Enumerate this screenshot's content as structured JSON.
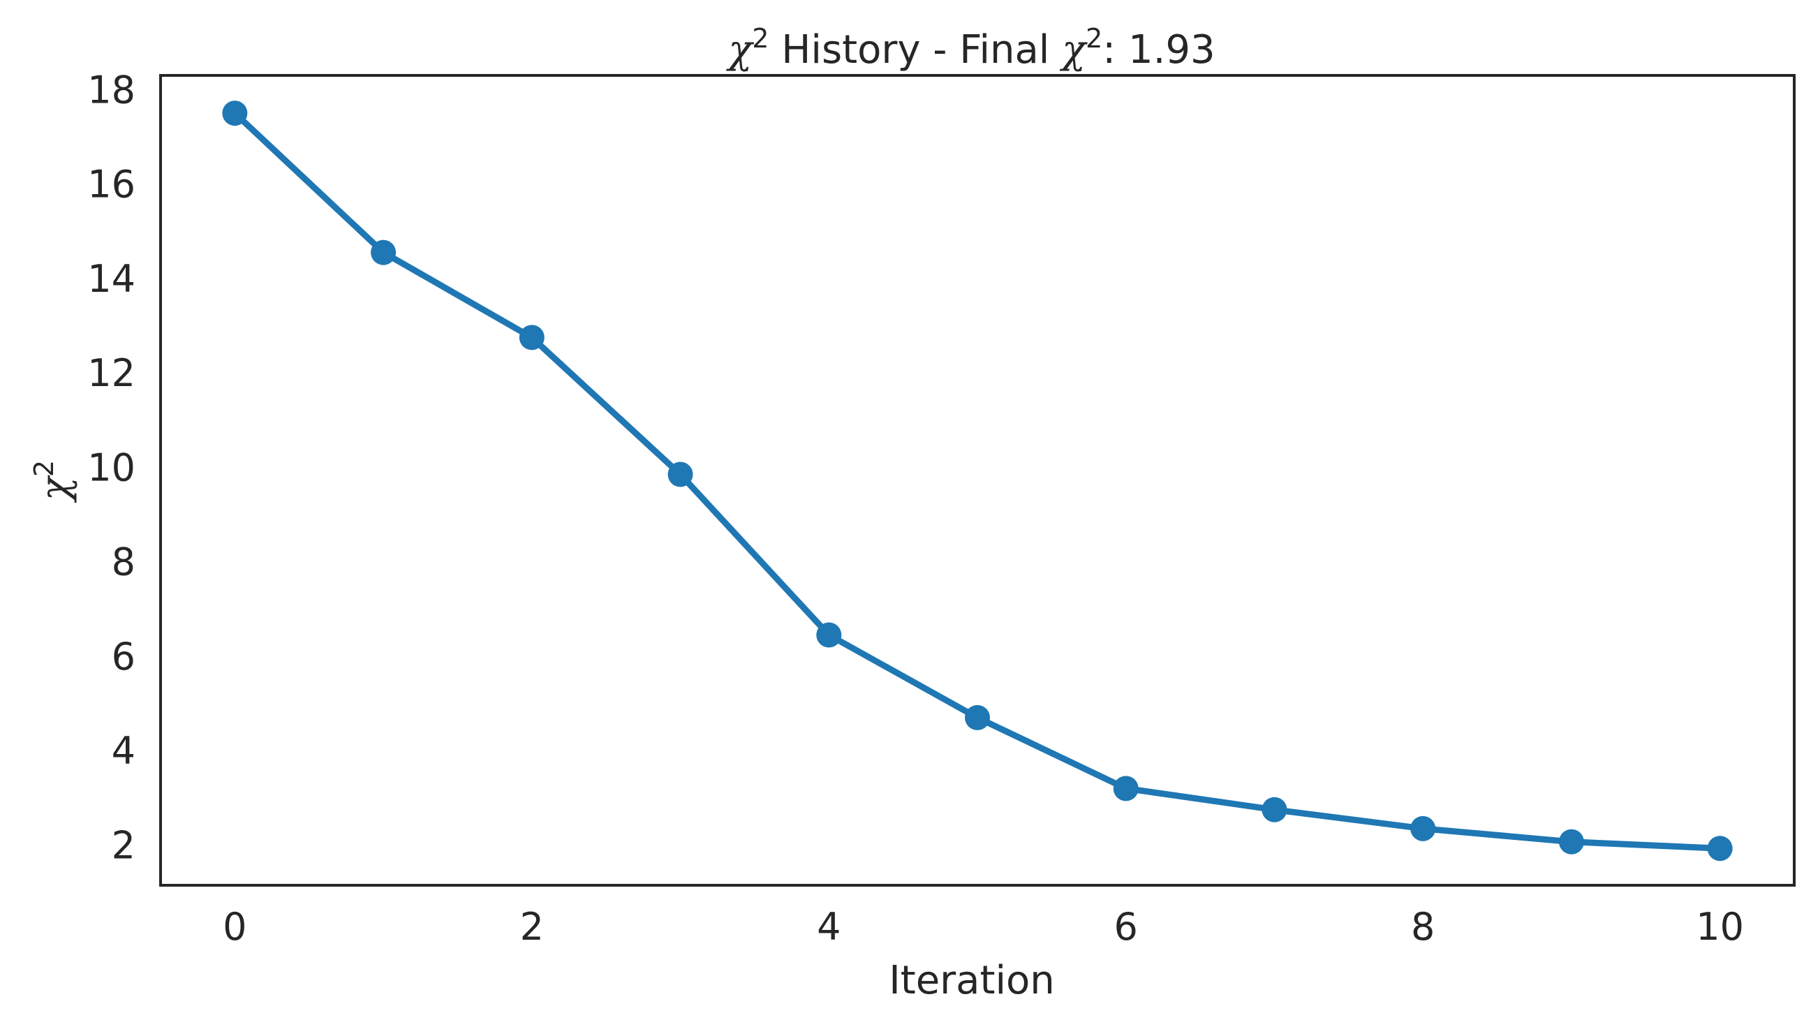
{
  "chart_data": {
    "type": "line",
    "title": {
      "symbol": "χ",
      "exponent": "2",
      "middle": " History - Final ",
      "symbol2": "χ",
      "exponent2": "2",
      "suffix": ": 1.93"
    },
    "xlabel": "Iteration",
    "ylabel": {
      "symbol": "χ",
      "exponent": "2"
    },
    "xlim": [
      -0.5,
      10.5
    ],
    "ylim": [
      1.15,
      18.3
    ],
    "xticks": [
      0,
      2,
      4,
      6,
      8,
      10
    ],
    "yticks": [
      2,
      4,
      6,
      8,
      10,
      12,
      14,
      16,
      18
    ],
    "grid": false,
    "series": [
      {
        "x": [
          0,
          1,
          2,
          3,
          4,
          5,
          6,
          7,
          8,
          9,
          10
        ],
        "y": [
          17.5,
          14.55,
          12.75,
          9.85,
          6.45,
          4.7,
          3.2,
          2.75,
          2.35,
          2.07,
          1.93
        ],
        "color": "#1f77b4",
        "marker": "circle"
      }
    ]
  }
}
